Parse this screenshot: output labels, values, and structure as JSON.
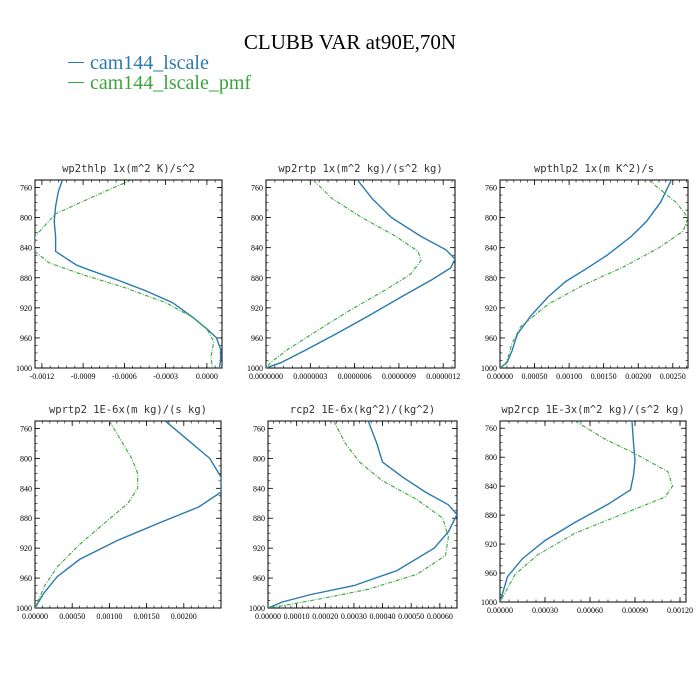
{
  "title": "CLUBB VAR at90E,70N",
  "legend": [
    {
      "label": "cam144_lscale",
      "color": "#2a7ab0"
    },
    {
      "label": "cam144_lscale_pmf",
      "color": "#3aa53a"
    }
  ],
  "chart_data": [
    {
      "type": "line",
      "title": "wp2thlp  1x(m^2 K)/s^2",
      "xlim": [
        -0.00125,
        0.00011
      ],
      "xticks": [
        "-0.0012",
        "-0.0009",
        "-0.0006",
        "-0.0003",
        "0.0000"
      ],
      "xtick_values": [
        -0.0012,
        -0.0009,
        -0.0006,
        -0.0003,
        0.0
      ],
      "ylim": [
        1000,
        750
      ],
      "yticks": [
        "760",
        "800",
        "840",
        "880",
        "920",
        "960",
        "1000"
      ],
      "ytick_values": [
        760,
        800,
        840,
        880,
        920,
        960,
        1000
      ],
      "series": [
        {
          "name": "cam144_lscale",
          "points": [
            [
              -0.00105,
              750
            ],
            [
              -0.00108,
              765
            ],
            [
              -0.0011,
              785
            ],
            [
              -0.00111,
              805
            ],
            [
              -0.0011,
              825
            ],
            [
              -0.0011,
              845
            ],
            [
              -0.00095,
              863
            ],
            [
              -0.00085,
              870
            ],
            [
              -0.00065,
              883
            ],
            [
              -0.00045,
              897
            ],
            [
              -0.00025,
              913
            ],
            [
              -0.0001,
              933
            ],
            [
              0.0,
              948
            ],
            [
              7e-05,
              960
            ],
            [
              0.0001,
              975
            ],
            [
              0.0001,
              990
            ],
            [
              9e-05,
              1000
            ]
          ]
        },
        {
          "name": "cam144_lscale_pmf",
          "points": [
            [
              -0.00055,
              750
            ],
            [
              -0.0008,
              770
            ],
            [
              -0.0011,
              795
            ],
            [
              -0.00125,
              825
            ],
            [
              -0.00125,
              845
            ],
            [
              -0.00115,
              860
            ],
            [
              -0.0009,
              876
            ],
            [
              -0.0006,
              893
            ],
            [
              -0.0003,
              913
            ],
            [
              -0.0001,
              933
            ],
            [
              0.0,
              948
            ],
            [
              5e-05,
              965
            ],
            [
              3e-05,
              985
            ],
            [
              4e-05,
              1000
            ]
          ]
        }
      ]
    },
    {
      "type": "line",
      "title": "wp2rtp  1x(m^2 kg)/(s^2 kg)",
      "xlim": [
        0.0,
        1.28e-06
      ],
      "xticks": [
        "0.0000000",
        "0.0000003",
        "0.0000006",
        "0.0000009",
        "0.0000012"
      ],
      "xtick_values": [
        0.0,
        3e-07,
        6e-07,
        9e-07,
        1.2e-06
      ],
      "ylim": [
        1000,
        750
      ],
      "yticks": [
        "760",
        "800",
        "840",
        "880",
        "920",
        "960",
        "1000"
      ],
      "ytick_values": [
        760,
        800,
        840,
        880,
        920,
        960,
        1000
      ],
      "series": [
        {
          "name": "cam144_lscale",
          "points": [
            [
              6.2e-07,
              750
            ],
            [
              7.2e-07,
              775
            ],
            [
              8.5e-07,
              800
            ],
            [
              1.05e-06,
              825
            ],
            [
              1.22e-06,
              843
            ],
            [
              1.28e-06,
              855
            ],
            [
              1.25e-06,
              867
            ],
            [
              1.12e-06,
              883
            ],
            [
              9.2e-07,
              905
            ],
            [
              7e-07,
              930
            ],
            [
              4.7e-07,
              955
            ],
            [
              2.5e-07,
              978
            ],
            [
              1e-07,
              993
            ],
            [
              0.0,
              1000
            ]
          ]
        },
        {
          "name": "cam144_lscale_pmf",
          "points": [
            [
              3.2e-07,
              750
            ],
            [
              4.5e-07,
              775
            ],
            [
              6.5e-07,
              800
            ],
            [
              8.8e-07,
              825
            ],
            [
              1.03e-06,
              845
            ],
            [
              1.05e-06,
              857
            ],
            [
              9.8e-07,
              875
            ],
            [
              8.2e-07,
              895
            ],
            [
              5.7e-07,
              923
            ],
            [
              3.5e-07,
              950
            ],
            [
              1.5e-07,
              975
            ],
            [
              3e-08,
              993
            ],
            [
              0.0,
              1000
            ]
          ]
        }
      ]
    },
    {
      "type": "line",
      "title": "wpthlp2  1x(m K^2)/s",
      "xlim": [
        0.0,
        0.00272
      ],
      "xticks": [
        "0.00000",
        "0.00050",
        "0.00100",
        "0.00150",
        "0.00200",
        "0.00250"
      ],
      "xtick_values": [
        0.0,
        0.0005,
        0.001,
        0.0015,
        0.002,
        0.0025
      ],
      "ylim": [
        1000,
        750
      ],
      "yticks": [
        "760",
        "800",
        "840",
        "880",
        "920",
        "960",
        "1000"
      ],
      "ytick_values": [
        760,
        800,
        840,
        880,
        920,
        960,
        1000
      ],
      "series": [
        {
          "name": "cam144_lscale",
          "points": [
            [
              0.00248,
              750
            ],
            [
              0.00232,
              780
            ],
            [
              0.00212,
              805
            ],
            [
              0.0019,
              825
            ],
            [
              0.00155,
              850
            ],
            [
              0.00125,
              868
            ],
            [
              0.00095,
              885
            ],
            [
              0.0007,
              905
            ],
            [
              0.00045,
              930
            ],
            [
              0.00025,
              955
            ],
            [
              0.00017,
              978
            ],
            [
              0.0001,
              993
            ],
            [
              0.0,
              1000
            ]
          ]
        },
        {
          "name": "cam144_lscale_pmf",
          "points": [
            [
              0.00215,
              750
            ],
            [
              0.00255,
              780
            ],
            [
              0.00272,
              800
            ],
            [
              0.00265,
              818
            ],
            [
              0.0023,
              840
            ],
            [
              0.0018,
              865
            ],
            [
              0.0012,
              890
            ],
            [
              0.0007,
              915
            ],
            [
              0.0003,
              945
            ],
            [
              0.00017,
              968
            ],
            [
              0.00012,
              985
            ],
            [
              8e-05,
              995
            ],
            [
              0.0,
              1000
            ]
          ]
        }
      ]
    },
    {
      "type": "line",
      "title": "wprtp2  1E-6x(m kg)/(s kg)",
      "xlim": [
        0.0,
        0.0025
      ],
      "xticks": [
        "0.00000",
        "0.00050",
        "0.00100",
        "0.00150",
        "0.00200"
      ],
      "xtick_values": [
        0.0,
        0.0005,
        0.001,
        0.0015,
        0.002
      ],
      "ylim": [
        1000,
        750
      ],
      "yticks": [
        "760",
        "800",
        "840",
        "880",
        "920",
        "960",
        "1000"
      ],
      "ytick_values": [
        760,
        800,
        840,
        880,
        920,
        960,
        1000
      ],
      "series": [
        {
          "name": "cam144_lscale",
          "points": [
            [
              0.00175,
              750
            ],
            [
              0.00205,
              775
            ],
            [
              0.00235,
              800
            ],
            [
              0.0025,
              825
            ],
            [
              0.0025,
              845
            ],
            [
              0.0022,
              865
            ],
            [
              0.0017,
              885
            ],
            [
              0.0011,
              910
            ],
            [
              0.0006,
              935
            ],
            [
              0.0003,
              958
            ],
            [
              0.00012,
              980
            ],
            [
              0.0,
              1000
            ]
          ]
        },
        {
          "name": "cam144_lscale_pmf",
          "points": [
            [
              0.001,
              750
            ],
            [
              0.00115,
              775
            ],
            [
              0.0013,
              800
            ],
            [
              0.00138,
              820
            ],
            [
              0.00138,
              840
            ],
            [
              0.00125,
              860
            ],
            [
              0.00095,
              885
            ],
            [
              0.0006,
              915
            ],
            [
              0.0003,
              945
            ],
            [
              0.00013,
              970
            ],
            [
              0.0,
              1000
            ]
          ]
        }
      ]
    },
    {
      "type": "line",
      "title": "rcp2  1E-6x(kg^2)/(kg^2)",
      "xlim": [
        0.0,
        0.00066
      ],
      "xticks": [
        "0.00000",
        "0.00010",
        "0.00020",
        "0.00030",
        "0.00040",
        "0.00050",
        "0.00060"
      ],
      "xtick_values": [
        0.0,
        0.0001,
        0.0002,
        0.0003,
        0.0004,
        0.0005,
        0.0006
      ],
      "ylim": [
        1000,
        750
      ],
      "yticks": [
        "760",
        "800",
        "840",
        "880",
        "920",
        "960",
        "1000"
      ],
      "ytick_values": [
        760,
        800,
        840,
        880,
        920,
        960,
        1000
      ],
      "series": [
        {
          "name": "cam144_lscale",
          "points": [
            [
              0.00035,
              750
            ],
            [
              0.00038,
              780
            ],
            [
              0.0004,
              805
            ],
            [
              0.00047,
              825
            ],
            [
              0.00055,
              845
            ],
            [
              0.00063,
              862
            ],
            [
              0.00066,
              875
            ],
            [
              0.00063,
              898
            ],
            [
              0.00058,
              920
            ],
            [
              0.00045,
              950
            ],
            [
              0.0003,
              970
            ],
            [
              0.00015,
              982
            ],
            [
              5e-05,
              992
            ],
            [
              0.0,
              1000
            ]
          ]
        },
        {
          "name": "cam144_lscale_pmf",
          "points": [
            [
              0.00023,
              750
            ],
            [
              0.00027,
              780
            ],
            [
              0.00032,
              805
            ],
            [
              0.0004,
              830
            ],
            [
              0.00052,
              855
            ],
            [
              0.00061,
              880
            ],
            [
              0.00063,
              905
            ],
            [
              0.00062,
              930
            ],
            [
              0.00052,
              955
            ],
            [
              0.00035,
              975
            ],
            [
              0.00018,
              988
            ],
            [
              5e-05,
              997
            ],
            [
              0.0,
              1000
            ]
          ]
        }
      ]
    },
    {
      "type": "line",
      "title": "wp2rcp  1E-3x(m^2 kg)/(s^2 kg)",
      "xlim": [
        0.0,
        0.00124
      ],
      "xticks": [
        "0.00000",
        "0.00030",
        "0.00060",
        "0.00090",
        "0.00120"
      ],
      "xtick_values": [
        0.0,
        0.0003,
        0.0006,
        0.0009,
        0.0012
      ],
      "ylim": [
        1000,
        750
      ],
      "yticks": [
        "760",
        "800",
        "840",
        "880",
        "920",
        "960",
        "1000"
      ],
      "ytick_values": [
        760,
        800,
        840,
        880,
        920,
        960,
        1000
      ],
      "series": [
        {
          "name": "cam144_lscale",
          "points": [
            [
              0.00088,
              750
            ],
            [
              0.00089,
              780
            ],
            [
              0.0009,
              805
            ],
            [
              0.00089,
              825
            ],
            [
              0.00087,
              845
            ],
            [
              0.00072,
              865
            ],
            [
              0.0005,
              890
            ],
            [
              0.0003,
              915
            ],
            [
              0.00015,
              940
            ],
            [
              5e-05,
              965
            ],
            [
              0.0,
              1000
            ]
          ]
        },
        {
          "name": "cam144_lscale_pmf",
          "points": [
            [
              0.0005,
              750
            ],
            [
              0.0007,
              775
            ],
            [
              0.0009,
              795
            ],
            [
              0.00112,
              820
            ],
            [
              0.00115,
              840
            ],
            [
              0.0011,
              855
            ],
            [
              0.0008,
              880
            ],
            [
              0.0005,
              905
            ],
            [
              0.00025,
              935
            ],
            [
              0.0001,
              962
            ],
            [
              0.0,
              1000
            ]
          ]
        }
      ]
    }
  ]
}
